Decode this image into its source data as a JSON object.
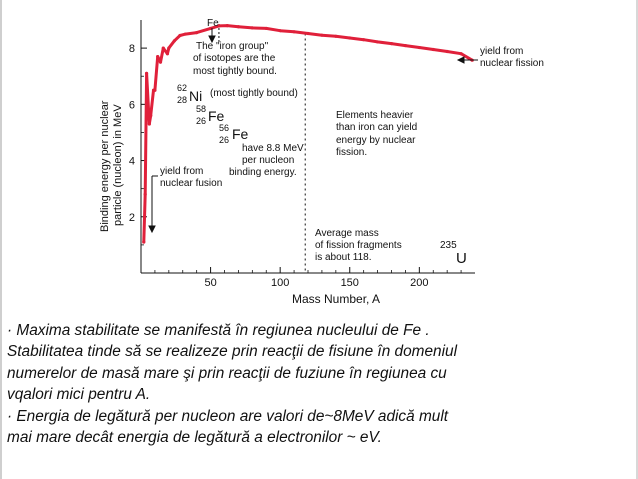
{
  "chart_data": {
    "type": "line",
    "xlabel": "Mass Number, A",
    "ylabel": "Binding energy per nuclear particle (nucleon) in MeV",
    "xlim": [
      0,
      240
    ],
    "ylim": [
      0,
      9
    ],
    "x_ticks": [
      50,
      100,
      150,
      200
    ],
    "x_tick_labels": [
      "50",
      "100",
      "150",
      "200"
    ],
    "y_ticks": [
      2,
      4,
      6,
      8
    ],
    "y_tick_labels": [
      "2",
      "4",
      "6",
      "8"
    ],
    "color": "#e0203a",
    "series": [
      {
        "x": [
          2,
          3,
          4,
          6,
          7,
          9,
          10,
          12,
          14,
          16,
          19,
          20,
          24,
          28,
          32,
          40,
          50,
          56,
          62,
          70,
          80,
          90,
          100,
          110,
          120,
          130,
          140,
          150,
          160,
          170,
          180,
          190,
          200,
          210,
          220,
          230,
          238
        ],
        "y": [
          1.1,
          2.8,
          7.1,
          5.3,
          5.6,
          6.5,
          6.5,
          7.7,
          7.5,
          8.0,
          7.8,
          8.0,
          8.26,
          8.45,
          8.5,
          8.55,
          8.7,
          8.79,
          8.8,
          8.76,
          8.72,
          8.7,
          8.62,
          8.58,
          8.52,
          8.46,
          8.42,
          8.36,
          8.3,
          8.22,
          8.16,
          8.09,
          8.02,
          7.95,
          7.88,
          7.8,
          7.57
        ]
      }
    ],
    "annotations": {
      "fe_top": "Fe",
      "iron_group": [
        "The \"iron group\"",
        "of isotopes are the",
        "most tightly bound."
      ],
      "ni_mass": "62",
      "ni_z": "28",
      "ni_symbol": "Ni",
      "ni_note": "(most tightly bound)",
      "fe58_mass": "58",
      "fe58_z": "26",
      "fe58_symbol": "Fe",
      "fe56_mass": "56",
      "fe56_z": "26",
      "fe56_symbol": "Fe",
      "fe56_note": [
        "have 8.8 MeV",
        "per nucleon",
        "binding energy."
      ],
      "fusion": [
        "yield from",
        "nuclear fusion"
      ],
      "fission": [
        "yield from",
        "nuclear fission"
      ],
      "heavier": [
        "Elements heavier",
        "than iron can yield",
        "energy by nuclear",
        "fission."
      ],
      "avg_mass": [
        "Average mass",
        "of fission fragments",
        "is about 118."
      ],
      "u_mass": "235",
      "u_symbol": "U"
    }
  },
  "bullets": [
    "· Maxima stabilitate se manifestă în regiunea nucleului de Fe .",
    "Stabilitatea tinde să se realizeze prin reacţii de fisiune în domeniul",
    "numerelor de masă mare şi prin reacţii de fuziune în regiunea  cu",
    "vqalori mici pentru A.",
    "· Energia de legătură per nucleon are valori de~8MeV adică mult",
    "mai mare decât energia de legătură a electronilor ~ eV."
  ]
}
